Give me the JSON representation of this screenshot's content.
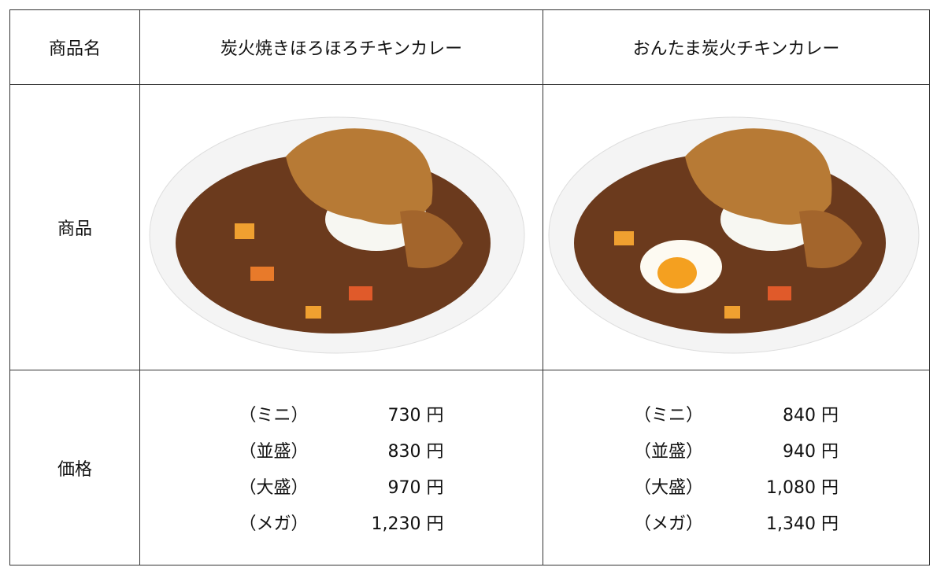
{
  "table": {
    "rows": [
      {
        "label": "商品名",
        "cells": [
          "炭火焼きほろほろチキンカレー",
          "おんたま炭火チキンカレー"
        ]
      },
      {
        "label": "商品"
      },
      {
        "label": "価格",
        "cells": [
          [
            {
              "size": "（ミニ）",
              "price": "730 円"
            },
            {
              "size": "（並盛）",
              "price": "830 円"
            },
            {
              "size": "（大盛）",
              "price": "970 円"
            },
            {
              "size": "（メガ）",
              "price": "1,230 円"
            }
          ],
          [
            {
              "size": "（ミニ）",
              "price": "840 円"
            },
            {
              "size": "（並盛）",
              "price": "940 円"
            },
            {
              "size": "（大盛）",
              "price": "1,080 円"
            },
            {
              "size": "（メガ）",
              "price": "1,340 円"
            }
          ]
        ]
      }
    ]
  }
}
